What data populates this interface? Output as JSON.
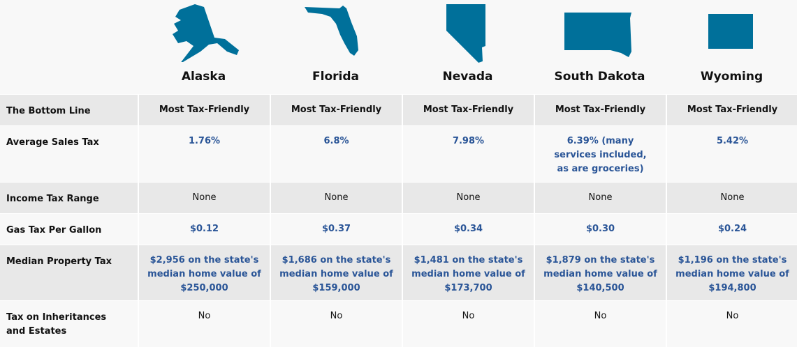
{
  "colors": {
    "state_fill": "#00709a",
    "value_blue": "#2a5597",
    "row_gray": "#e8e8e8",
    "row_light": "#f8f8f8"
  },
  "states": [
    "Alaska",
    "Florida",
    "Nevada",
    "South Dakota",
    "Wyoming"
  ],
  "rows": [
    {
      "label": "The Bottom Line",
      "style": "blk",
      "values": [
        "Most Tax-Friendly",
        "Most Tax-Friendly",
        "Most Tax-Friendly",
        "Most Tax-Friendly",
        "Most Tax-Friendly"
      ]
    },
    {
      "label": "Average Sales Tax",
      "style": "blue",
      "values": [
        "1.76%",
        "6.8%",
        "7.98%",
        "6.39% (many services included, as are groceries)",
        "5.42%"
      ]
    },
    {
      "label": "Income Tax Range",
      "style": "plain",
      "values": [
        "None",
        "None",
        "None",
        "None",
        "None"
      ]
    },
    {
      "label": "Gas Tax Per Gallon",
      "style": "blue",
      "values": [
        "$0.12",
        "$0.37",
        "$0.34",
        "$0.30",
        "$0.24"
      ]
    },
    {
      "label": "Median Property Tax",
      "style": "blue",
      "values": [
        "$2,956 on the state's median home value of $250,000",
        "$1,686 on the state's median home value of $159,000",
        "$1,481 on the state's median home value of $173,700",
        "$1,879 on the state's median home value of $140,500",
        "$1,196 on the state's median home value of $194,800"
      ]
    },
    {
      "label": "Tax on Inheritances and Estates",
      "style": "plain",
      "values": [
        "No",
        "No",
        "No",
        "No",
        "No"
      ]
    }
  ]
}
